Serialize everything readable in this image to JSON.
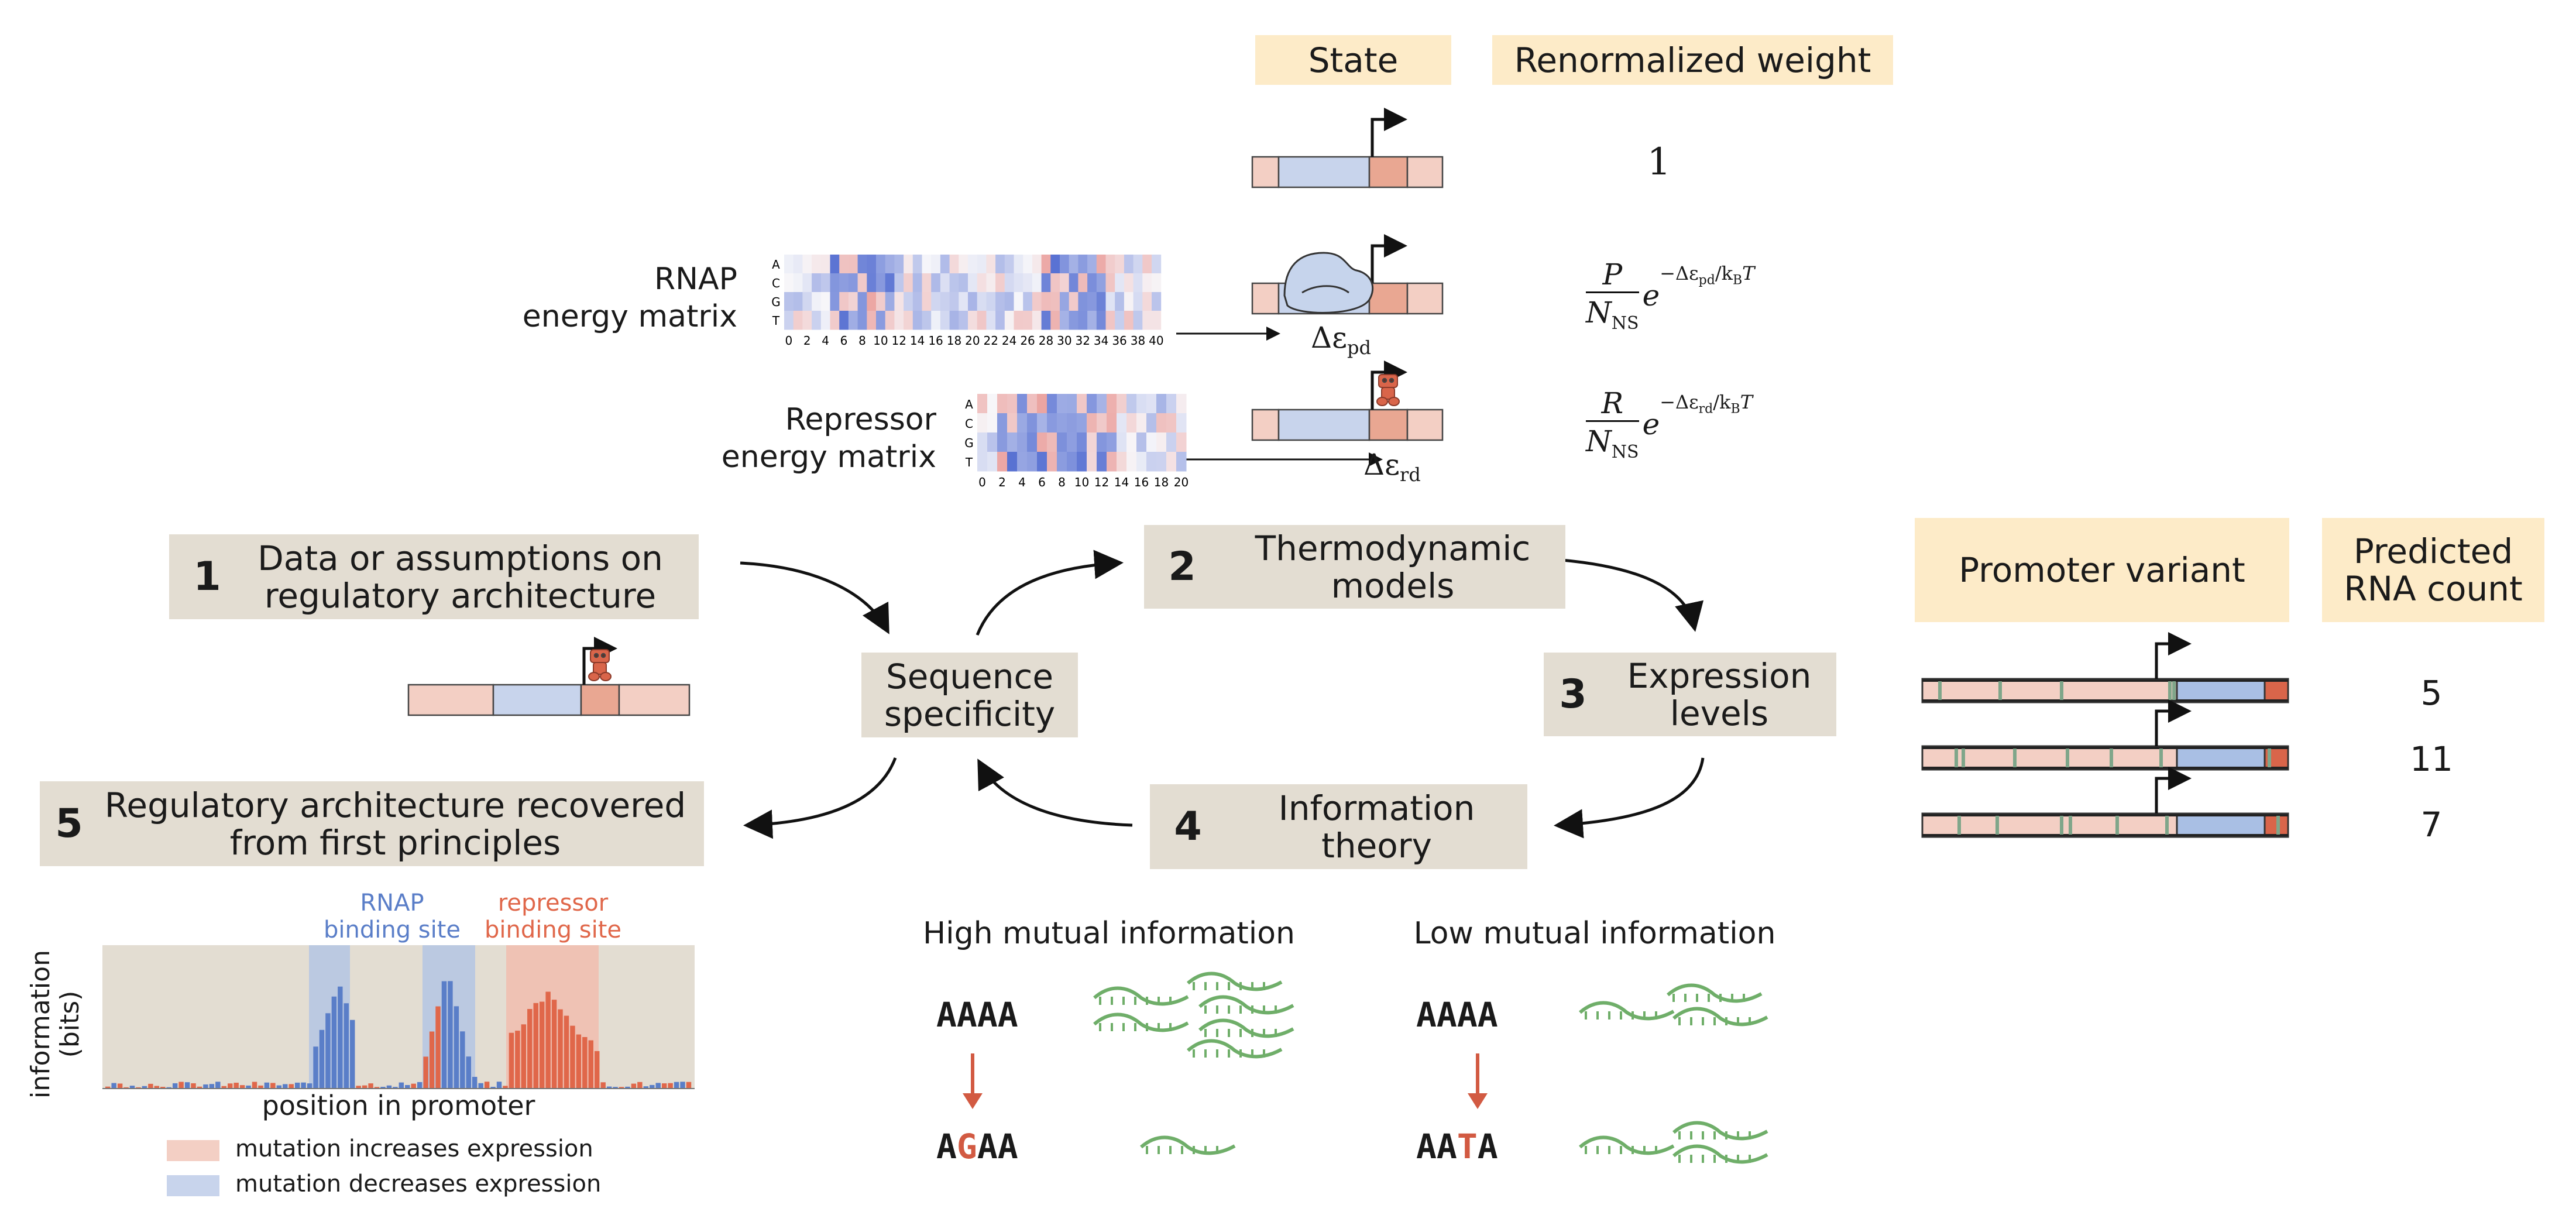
{
  "colors": {
    "box": "#e3ddd2",
    "header": "#fdebc8",
    "blue": "#c8d4ec",
    "pink": "#f3cfc4",
    "salmon": "#e9a792",
    "repressor": "#d9654a",
    "rnap_fill": "#c6d4ec",
    "blue_bar": "#5a7ec8",
    "red_bar": "#e0674a",
    "green": "#6fae69",
    "arrow_red": "#d25a42"
  },
  "steps": [
    {
      "num": "1",
      "text": "Data or assumptions on regulatory architecture"
    },
    {
      "num": "2",
      "text": "Thermodynamic models"
    },
    {
      "num": "3",
      "text": "Expression levels"
    },
    {
      "num": "4",
      "text": "Information theory"
    },
    {
      "num": "5",
      "text": "Regulatory architecture recovered from first principles"
    }
  ],
  "center_label": "Sequence specificity",
  "state_table": {
    "state_header": "State",
    "weight_header": "Renormalized weight",
    "weight_1": "1",
    "delta_pd": "Δε",
    "delta_pd_sub": "pd",
    "delta_rd": "Δε",
    "delta_rd_sub": "rd",
    "formula_p": {
      "num": "P",
      "den": "N",
      "den_sub": "NS",
      "exp": "−Δε",
      "exp_sub": "pd",
      "exp_tail": "/k",
      "exp_tail_sub": "B",
      "exp_end": "T"
    },
    "formula_r": {
      "num": "R",
      "den": "N",
      "den_sub": "NS",
      "exp": "−Δε",
      "exp_sub": "rd",
      "exp_tail": "/k",
      "exp_tail_sub": "B",
      "exp_end": "T"
    }
  },
  "matrices": {
    "rnap_label_1": "RNAP",
    "rnap_label_2": "energy matrix",
    "rep_label_1": "Repressor",
    "rep_label_2": "energy matrix",
    "bases": [
      "A",
      "C",
      "G",
      "T"
    ],
    "rnap_ticks": [
      "0",
      "2",
      "4",
      "6",
      "8",
      "10",
      "12",
      "14",
      "16",
      "18",
      "20",
      "22",
      "24",
      "26",
      "28",
      "30",
      "32",
      "34",
      "36",
      "38",
      "40"
    ],
    "rep_ticks": [
      "0",
      "2",
      "4",
      "6",
      "8",
      "10",
      "12",
      "14",
      "16",
      "18",
      "20"
    ]
  },
  "promoter_table": {
    "variant_header": "Promoter variant",
    "count_header": "Predicted RNA count",
    "counts": [
      "5",
      "11",
      "7"
    ]
  },
  "mi": {
    "high_title": "High mutual information",
    "low_title": "Low mutual information",
    "high_wt": "AAAA",
    "high_mut_prefix": "A",
    "high_mut_letter": "G",
    "high_mut_suffix": "AA",
    "low_wt": "AAAA",
    "low_mut_prefix": "AA",
    "low_mut_letter": "T",
    "low_mut_suffix": "A"
  },
  "footprint": {
    "ylabel_1": "information",
    "ylabel_2": "(bits)",
    "xlabel": "position in promoter",
    "rnap_site_1": "RNAP",
    "rnap_site_2": "binding site",
    "rep_site_1": "repressor",
    "rep_site_2": "binding site",
    "legend": [
      {
        "label": "mutation increases expression",
        "color": "#f3cfc4"
      },
      {
        "label": "mutation decreases expression",
        "color": "#c8d4ec"
      }
    ]
  }
}
